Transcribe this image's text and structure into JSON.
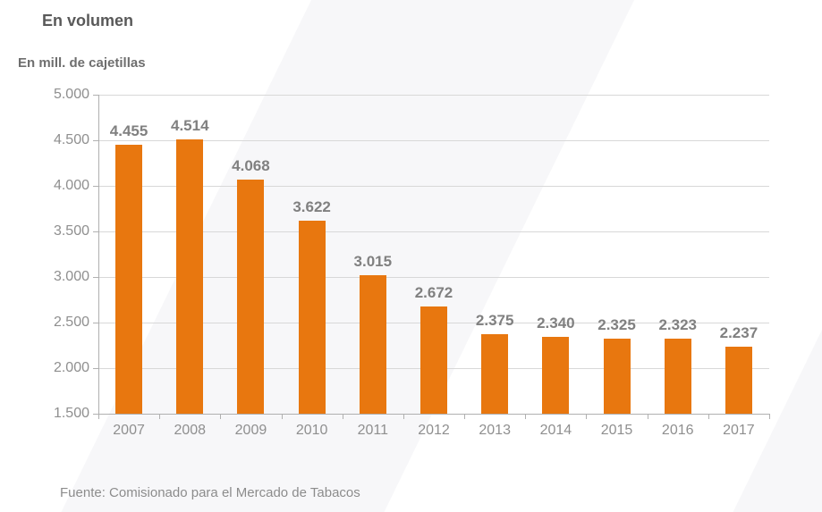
{
  "header": {
    "title": "En volumen",
    "subtitle": "En mill. de cajetillas"
  },
  "footer": {
    "source": "Fuente: Comisionado para el Mercado de Tabacos"
  },
  "colors": {
    "bar": "#E8770F",
    "value_label": "#808080",
    "axis": "#b0b0b0",
    "gridline": "#d8d8d8",
    "axis_text": "#8f8f8f",
    "title_text": "#595959",
    "watermark": "#f7f7f9",
    "background": "#ffffff"
  },
  "chart_data": {
    "type": "bar",
    "title": "En volumen",
    "subtitle": "En mill. de cajetillas",
    "xlabel": "",
    "ylabel": "En mill. de cajetillas",
    "categories": [
      "2007",
      "2008",
      "2009",
      "2010",
      "2011",
      "2012",
      "2013",
      "2014",
      "2015",
      "2016",
      "2017"
    ],
    "values": [
      4455,
      4514,
      4068,
      3622,
      3015,
      2672,
      2375,
      2340,
      2325,
      2323,
      2237
    ],
    "value_labels": [
      "4.455",
      "4.514",
      "4.068",
      "3.622",
      "3.015",
      "2.672",
      "2.375",
      "2.340",
      "2.325",
      "2.323",
      "2.237"
    ],
    "ylim": [
      1500,
      5000
    ],
    "ytick_step": 500,
    "ytick_labels": [
      "1.500",
      "2.000",
      "2.500",
      "3.000",
      "3.500",
      "4.000",
      "4.500",
      "5.000"
    ],
    "grid": true,
    "legend": false,
    "bar_color": "#E8770F"
  }
}
